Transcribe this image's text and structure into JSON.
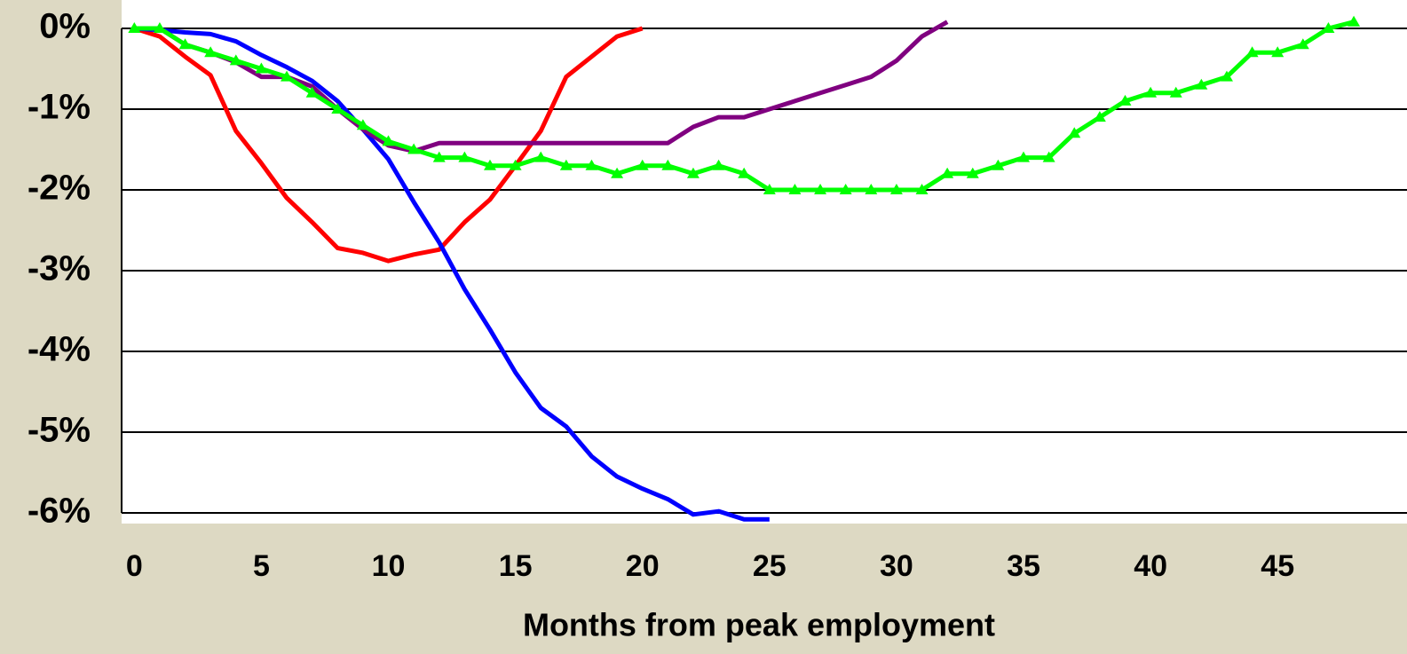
{
  "chart_data": {
    "type": "line",
    "x_label": "Months from peak employment",
    "x": [
      0,
      1,
      2,
      3,
      4,
      5,
      6,
      7,
      8,
      9,
      10,
      11,
      12,
      13,
      14,
      15,
      16,
      17,
      18,
      19,
      20,
      21,
      22,
      23,
      24,
      25,
      26,
      27,
      28,
      29,
      30,
      31,
      32,
      33,
      34,
      35,
      36,
      37,
      38,
      39,
      40,
      41,
      42,
      43,
      44,
      45,
      46,
      47,
      48
    ],
    "xlim": [
      -0.5,
      49.5
    ],
    "xticks": [
      0,
      5,
      10,
      15,
      20,
      25,
      30,
      35,
      40,
      45
    ],
    "ylim": [
      -6,
      0
    ],
    "yticks": [
      {
        "value": 0,
        "label": "0%"
      },
      {
        "value": -1,
        "label": "-1%"
      },
      {
        "value": -2,
        "label": "-2%"
      },
      {
        "value": -3,
        "label": "-3%"
      },
      {
        "value": -4,
        "label": "-4%"
      },
      {
        "value": -5,
        "label": "-5%"
      },
      {
        "value": -6,
        "label": "-6%"
      }
    ],
    "grid": true,
    "series": [
      {
        "color": "#ff0000",
        "values": [
          0,
          -0.1,
          -0.35,
          -0.58,
          -1.27,
          -1.67,
          -2.1,
          -2.4,
          -2.72,
          -2.78,
          -2.88,
          -2.8,
          -2.74,
          -2.4,
          -2.12,
          -1.7,
          -1.27,
          -0.6,
          -0.35,
          -0.1,
          0,
          null,
          null,
          null,
          null,
          null,
          null,
          null,
          null,
          null,
          null,
          null,
          null,
          null,
          null,
          null,
          null,
          null,
          null,
          null,
          null,
          null,
          null,
          null,
          null,
          null,
          null,
          null,
          null
        ]
      },
      {
        "color": "#0000ff",
        "values": [
          0,
          -0.02,
          -0.05,
          -0.07,
          -0.16,
          -0.33,
          -0.48,
          -0.65,
          -0.9,
          -1.25,
          -1.62,
          -2.15,
          -2.65,
          -3.23,
          -3.73,
          -4.26,
          -4.7,
          -4.93,
          -5.3,
          -5.55,
          -5.7,
          -5.83,
          -6.02,
          -5.98,
          -6.08,
          -6.08,
          null,
          null,
          null,
          null,
          null,
          null,
          null,
          null,
          null,
          null,
          null,
          null,
          null,
          null,
          null,
          null,
          null,
          null,
          null,
          null,
          null,
          null,
          null
        ]
      },
      {
        "color": "#800080",
        "values": [
          0,
          0,
          -0.2,
          -0.3,
          -0.42,
          -0.6,
          -0.6,
          -0.72,
          -1.0,
          -1.25,
          -1.45,
          -1.52,
          -1.42,
          -1.42,
          -1.42,
          -1.42,
          -1.42,
          -1.42,
          -1.42,
          -1.42,
          -1.42,
          -1.42,
          -1.22,
          -1.1,
          -1.1,
          -1.0,
          -0.9,
          -0.8,
          -0.7,
          -0.6,
          -0.4,
          -0.1,
          0.08,
          null,
          null,
          null,
          null,
          null,
          null,
          null,
          null,
          null,
          null,
          null,
          null,
          null,
          null,
          null,
          null
        ]
      },
      {
        "color": "#00ff00",
        "marker": "triangle",
        "values": [
          0,
          0,
          -0.2,
          -0.3,
          -0.4,
          -0.5,
          -0.6,
          -0.8,
          -1.0,
          -1.2,
          -1.4,
          -1.5,
          -1.6,
          -1.6,
          -1.7,
          -1.7,
          -1.6,
          -1.7,
          -1.7,
          -1.8,
          -1.7,
          -1.7,
          -1.8,
          -1.7,
          -1.8,
          -2.0,
          -2.0,
          -2.0,
          -2.0,
          -2.0,
          -2.0,
          -2.0,
          -1.8,
          -1.8,
          -1.7,
          -1.6,
          -1.6,
          -1.3,
          -1.1,
          -0.9,
          -0.8,
          -0.8,
          -0.7,
          -0.6,
          -0.3,
          -0.3,
          -0.2,
          0,
          0.08
        ]
      }
    ]
  }
}
